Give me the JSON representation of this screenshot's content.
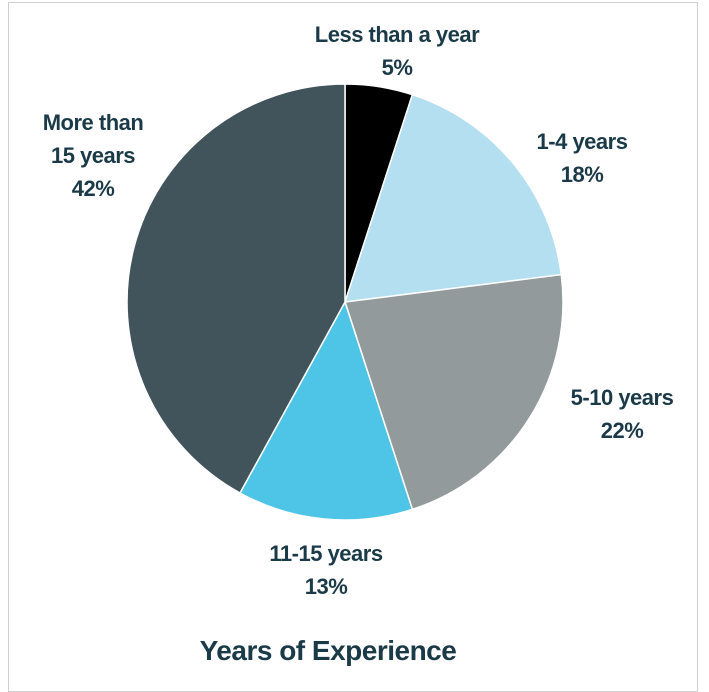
{
  "colors": {
    "label_text": "#1b3a48",
    "title_text": "#1b3a48",
    "slice_edge": "#ffffff"
  },
  "chart_data": {
    "type": "pie",
    "title": "Years of Experience",
    "slices": [
      {
        "label_lines": [
          "Less than a year"
        ],
        "percent_label": "5%",
        "value": 5,
        "color": "#000000"
      },
      {
        "label_lines": [
          "1-4 years"
        ],
        "percent_label": "18%",
        "value": 18,
        "color": "#b4dff0"
      },
      {
        "label_lines": [
          "5-10 years"
        ],
        "percent_label": "22%",
        "value": 22,
        "color": "#929a9c"
      },
      {
        "label_lines": [
          "11-15 years"
        ],
        "percent_label": "13%",
        "value": 13,
        "color": "#4ec4e6"
      },
      {
        "label_lines": [
          "More than",
          "15 years"
        ],
        "percent_label": "42%",
        "value": 42,
        "color": "#41535b"
      }
    ],
    "start_angle": "12 o'clock",
    "direction": "clockwise",
    "legend": "none",
    "data_labels": "category and percent, outside slices"
  }
}
